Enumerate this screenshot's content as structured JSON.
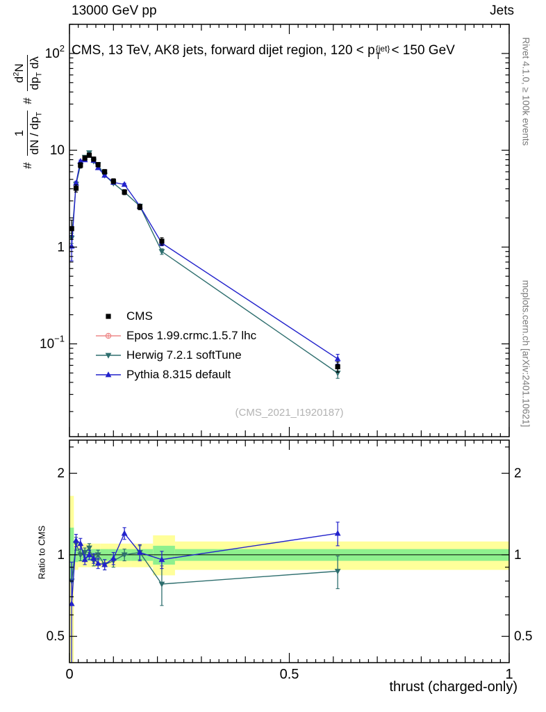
{
  "header": {
    "left": "13000 GeV pp",
    "right": "Jets"
  },
  "main_title": {
    "prefix": "CMS, 13 TeV, AK8 jets, forward dijet region, 120 < p",
    "sup": "{jet}",
    "sub": "T",
    "suffix": "< 150 GeV"
  },
  "y_axis_label": {
    "hash_a": "#",
    "frac_a": {
      "num": "1",
      "den_main": "dN / dp",
      "den_sub": "T"
    },
    "hash_b": "#",
    "frac_b": {
      "num_main": "d",
      "num_sup": "2",
      "num_end": "N",
      "den_main": "dp",
      "den_sub": "T",
      "den_end": " dλ"
    }
  },
  "ratio_axis_label": "Ratio to CMS",
  "x_axis_label": "thrust (charged-only)",
  "watermark": "(CMS_2021_I1920187)",
  "side_notes": {
    "top": "Rivet 4.1.0, ≥ 100k events",
    "bottom": "mcplots.cern.ch [arXiv:2401.10621]"
  },
  "legend": [
    {
      "label": "CMS",
      "marker": "square",
      "color": "#000000",
      "line": false
    },
    {
      "label": "Epos 1.99.crmc.1.5.7 lhc",
      "marker": "circle-open",
      "color": "#ee8888",
      "line": true
    },
    {
      "label": "Herwig 7.2.1 softTune",
      "marker": "triangle-down",
      "color": "#2e6e6e",
      "line": true
    },
    {
      "label": "Pythia 8.315 default",
      "marker": "triangle-up",
      "color": "#2222cc",
      "line": true
    }
  ],
  "chart_data": {
    "type": "line",
    "title": "CMS, 13 TeV, AK8 jets, forward dijet region, 120 < p_T^{jet} < 150 GeV",
    "xlabel": "thrust (charged-only)",
    "ylabel": "# 1/(dN/dp_T) # d2N/(dp_T dlambda)",
    "ratio_ylabel": "Ratio to CMS",
    "x": [
      0.005,
      0.015,
      0.025,
      0.035,
      0.045,
      0.055,
      0.065,
      0.08,
      0.1,
      0.125,
      0.16,
      0.21,
      0.61
    ],
    "series": [
      {
        "name": "Epos 1.99.crmc.1.5.7 lhc",
        "color": "#ee8888",
        "marker": "circle-open",
        "line": true,
        "values": [],
        "errors": [],
        "ratio": [],
        "ratio_errors": []
      },
      {
        "name": "Herwig 7.2.1 softTune",
        "color": "#2e6e6e",
        "marker": "triangle-down",
        "line": true,
        "values": [
          1.24,
          4.46,
          7.0,
          8.47,
          9.43,
          7.7,
          7.1,
          5.52,
          4.56,
          3.7,
          2.65,
          0.9,
          0.05
        ],
        "errors": [
          0.15,
          0.2,
          0.22,
          0.24,
          0.25,
          0.22,
          0.2,
          0.17,
          0.14,
          0.12,
          0.1,
          0.06,
          0.006
        ],
        "ratio": [
          0.8,
          1.1,
          1.0,
          1.02,
          1.06,
          0.95,
          1.0,
          0.92,
          0.95,
          1.0,
          1.02,
          0.78,
          0.87
        ],
        "ratio_errors": [
          0.1,
          0.06,
          0.05,
          0.04,
          0.04,
          0.04,
          0.04,
          0.04,
          0.05,
          0.05,
          0.06,
          0.13,
          0.12
        ]
      },
      {
        "name": "Pythia 8.315 default",
        "color": "#2222cc",
        "marker": "triangle-up",
        "line": true,
        "values": [
          1.02,
          4.58,
          7.7,
          7.97,
          8.9,
          7.86,
          6.6,
          5.52,
          4.66,
          4.44,
          2.65,
          1.1,
          0.07
        ],
        "errors": [
          0.3,
          0.2,
          0.22,
          0.24,
          0.25,
          0.22,
          0.2,
          0.17,
          0.15,
          0.13,
          0.1,
          0.07,
          0.008
        ],
        "ratio": [
          0.66,
          1.13,
          1.1,
          0.96,
          1.0,
          0.97,
          0.93,
          0.92,
          0.97,
          1.2,
          1.02,
          0.96,
          1.2
        ],
        "ratio_errors": [
          0.28,
          0.06,
          0.05,
          0.04,
          0.04,
          0.04,
          0.04,
          0.04,
          0.05,
          0.06,
          0.07,
          0.07,
          0.12
        ]
      },
      {
        "name": "CMS",
        "color": "#000000",
        "marker": "square",
        "line": false,
        "values": [
          1.55,
          4.05,
          7.0,
          8.3,
          8.9,
          8.1,
          7.1,
          6.0,
          4.8,
          3.7,
          2.6,
          1.15,
          0.058
        ],
        "errors": [
          0.35,
          0.35,
          0.45,
          0.45,
          0.45,
          0.42,
          0.38,
          0.33,
          0.28,
          0.22,
          0.17,
          0.1,
          0.007
        ]
      }
    ],
    "main": {
      "xlim": [
        0,
        1
      ],
      "yscale": "log",
      "ylim": [
        0.011,
        200
      ],
      "yticks": [
        {
          "v": 100,
          "base": "10",
          "sup": "2"
        },
        {
          "v": 10,
          "base": "10",
          "sup": ""
        },
        {
          "v": 1,
          "base": "1",
          "sup": ""
        },
        {
          "v": 0.1,
          "base": "10",
          "sup": "−1"
        }
      ]
    },
    "ratio": {
      "yscale": "log",
      "ylim": [
        0.4,
        2.65
      ],
      "yticks": [
        {
          "v": 2,
          "label": "2"
        },
        {
          "v": 1,
          "label": "1"
        },
        {
          "v": 0.5,
          "label": "0.5"
        }
      ],
      "minor_ticks": [
        0.6,
        0.7,
        0.8,
        0.9,
        2.5
      ],
      "bands": {
        "edges": [
          0,
          0.01,
          0.02,
          0.03,
          0.04,
          0.05,
          0.06,
          0.07,
          0.09,
          0.11,
          0.14,
          0.19,
          0.24,
          1.0
        ],
        "yellow": [
          [
            0.37,
            1.65
          ],
          [
            0.88,
            1.12
          ],
          [
            0.9,
            1.1
          ],
          [
            0.9,
            1.1
          ],
          [
            0.9,
            1.1
          ],
          [
            0.9,
            1.1
          ],
          [
            0.9,
            1.1
          ],
          [
            0.9,
            1.1
          ],
          [
            0.9,
            1.1
          ],
          [
            0.9,
            1.1
          ],
          [
            0.9,
            1.1
          ],
          [
            0.84,
            1.18
          ],
          [
            0.88,
            1.12
          ]
        ],
        "green": [
          [
            0.8,
            1.26
          ],
          [
            0.94,
            1.06
          ],
          [
            0.95,
            1.05
          ],
          [
            0.95,
            1.05
          ],
          [
            0.95,
            1.05
          ],
          [
            0.95,
            1.05
          ],
          [
            0.95,
            1.05
          ],
          [
            0.95,
            1.05
          ],
          [
            0.95,
            1.05
          ],
          [
            0.95,
            1.05
          ],
          [
            0.95,
            1.05
          ],
          [
            0.92,
            1.08
          ],
          [
            0.95,
            1.05
          ]
        ],
        "yellow_color": "#ffff9a",
        "green_color": "#8ef08e"
      }
    },
    "x_ticks": [
      {
        "v": 0,
        "label": "0"
      },
      {
        "v": 0.5,
        "label": "0.5"
      },
      {
        "v": 1,
        "label": "1"
      }
    ]
  }
}
